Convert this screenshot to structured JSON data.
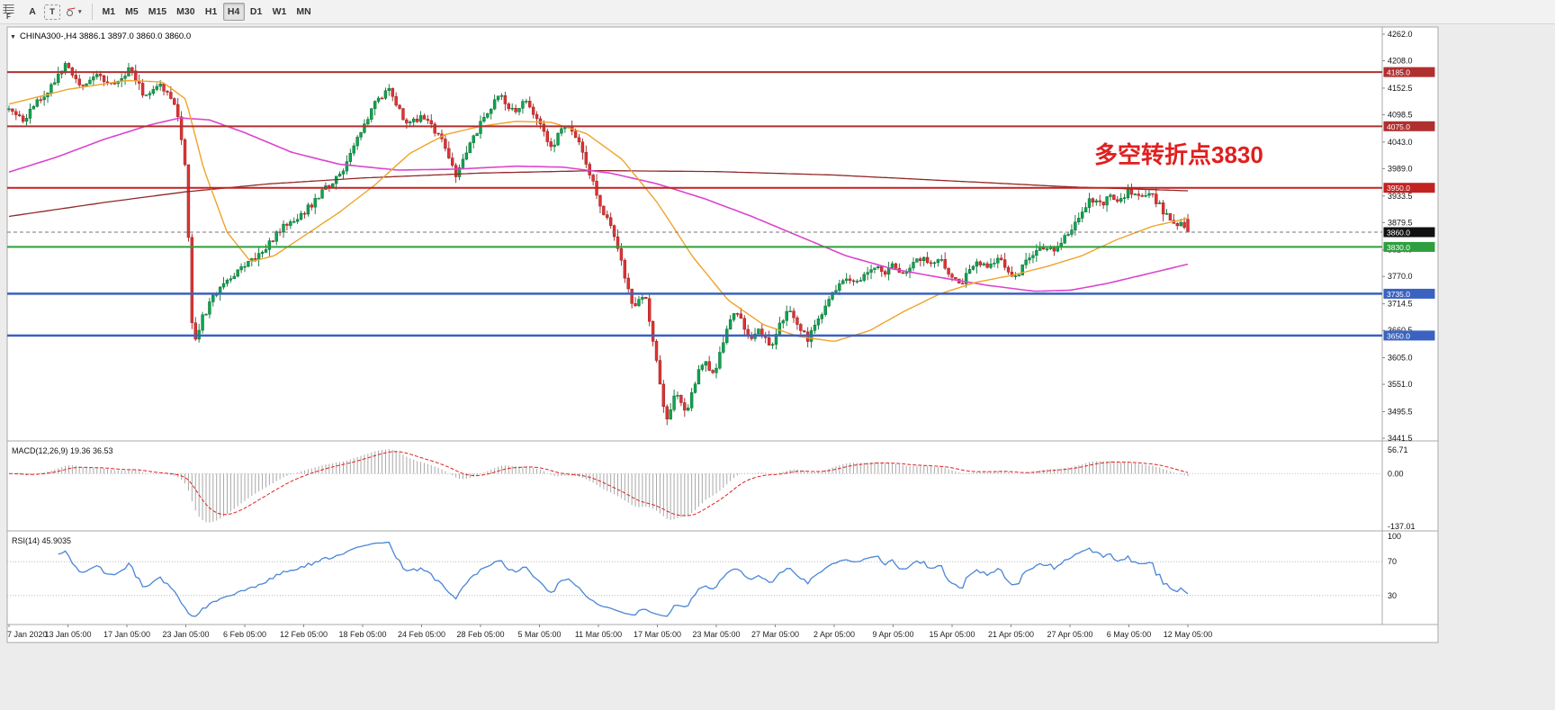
{
  "toolbar": {
    "window_tab_label": "F",
    "tools": {
      "cursor_label": "A",
      "text_label": "T",
      "shapes_caret": "▾"
    },
    "timeframes": [
      "M1",
      "M5",
      "M15",
      "M30",
      "H1",
      "H4",
      "D1",
      "W1",
      "MN"
    ],
    "active_timeframe": "H4"
  },
  "chart": {
    "expander_icon": "▼",
    "symbol_line": "CHINA300-,H4  3886.1 3897.0 3860.0 3860.0",
    "annotation": {
      "text": "多空转折点3830",
      "color": "#e01f1f"
    },
    "price_axis_labels": [
      "4262.0",
      "4208.0",
      "4152.5",
      "4098.5",
      "4043.0",
      "3989.0",
      "3933.5",
      "3879.5",
      "3824.0",
      "3770.0",
      "3714.5",
      "3660.5",
      "3605.0",
      "3551.0",
      "3495.5",
      "3441.5"
    ],
    "current_price": {
      "value": 3860.0,
      "label": "3860.0",
      "tag_color": "#111111"
    }
  },
  "indicators": {
    "macd": {
      "label": "MACD(12,26,9) 19.36 36.53",
      "axis_labels": [
        "56.71",
        "0.00",
        "-137.01"
      ]
    },
    "rsi": {
      "label": "RSI(14) 45.9035",
      "axis_labels": [
        "100",
        "70",
        "30"
      ],
      "levels": [
        70,
        30
      ]
    }
  },
  "time_axis": [
    "7 Jan 2020",
    "13 Jan 05:00",
    "17 Jan 05:00",
    "23 Jan 05:00",
    "6 Feb 05:00",
    "12 Feb 05:00",
    "18 Feb 05:00",
    "24 Feb 05:00",
    "28 Feb 05:00",
    "5 Mar 05:00",
    "11 Mar 05:00",
    "17 Mar 05:00",
    "23 Mar 05:00",
    "27 Mar 05:00",
    "2 Apr 05:00",
    "9 Apr 05:00",
    "15 Apr 05:00",
    "21 Apr 05:00",
    "27 Apr 05:00",
    "6 May 05:00",
    "12 May 05:00"
  ],
  "chart_data": {
    "type": "candlestick",
    "symbol": "CHINA300-",
    "timeframe": "H4",
    "current_bar": {
      "open": 3886.1,
      "high": 3897.0,
      "low": 3860.0,
      "close": 3860.0
    },
    "visible_price_range": {
      "top": 4262.0,
      "bottom": 3441.5
    },
    "candle_count": 336,
    "seed": 11,
    "price_path": [
      [
        0,
        4110
      ],
      [
        0.012,
        4088
      ],
      [
        0.03,
        4140
      ],
      [
        0.048,
        4200
      ],
      [
        0.06,
        4152
      ],
      [
        0.075,
        4180
      ],
      [
        0.088,
        4158
      ],
      [
        0.103,
        4195
      ],
      [
        0.115,
        4135
      ],
      [
        0.128,
        4165
      ],
      [
        0.143,
        4105
      ],
      [
        0.15,
        3980
      ],
      [
        0.156,
        3625
      ],
      [
        0.163,
        3680
      ],
      [
        0.178,
        3748
      ],
      [
        0.198,
        3788
      ],
      [
        0.213,
        3818
      ],
      [
        0.232,
        3868
      ],
      [
        0.252,
        3905
      ],
      [
        0.268,
        3948
      ],
      [
        0.283,
        3988
      ],
      [
        0.298,
        4058
      ],
      [
        0.312,
        4128
      ],
      [
        0.322,
        4152
      ],
      [
        0.338,
        4078
      ],
      [
        0.352,
        4095
      ],
      [
        0.368,
        4040
      ],
      [
        0.379,
        3978
      ],
      [
        0.391,
        4040
      ],
      [
        0.403,
        4092
      ],
      [
        0.416,
        4138
      ],
      [
        0.428,
        4105
      ],
      [
        0.439,
        4132
      ],
      [
        0.45,
        4080
      ],
      [
        0.46,
        4030
      ],
      [
        0.47,
        4082
      ],
      [
        0.48,
        4058
      ],
      [
        0.49,
        4000
      ],
      [
        0.5,
        3922
      ],
      [
        0.51,
        3875
      ],
      [
        0.52,
        3792
      ],
      [
        0.53,
        3705
      ],
      [
        0.54,
        3732
      ],
      [
        0.55,
        3585
      ],
      [
        0.558,
        3472
      ],
      [
        0.566,
        3542
      ],
      [
        0.574,
        3492
      ],
      [
        0.582,
        3558
      ],
      [
        0.59,
        3608
      ],
      [
        0.598,
        3562
      ],
      [
        0.606,
        3638
      ],
      [
        0.614,
        3698
      ],
      [
        0.622,
        3678
      ],
      [
        0.63,
        3642
      ],
      [
        0.638,
        3662
      ],
      [
        0.646,
        3625
      ],
      [
        0.654,
        3678
      ],
      [
        0.662,
        3698
      ],
      [
        0.67,
        3662
      ],
      [
        0.678,
        3642
      ],
      [
        0.686,
        3680
      ],
      [
        0.694,
        3718
      ],
      [
        0.702,
        3742
      ],
      [
        0.71,
        3768
      ],
      [
        0.718,
        3758
      ],
      [
        0.726,
        3775
      ],
      [
        0.734,
        3790
      ],
      [
        0.742,
        3778
      ],
      [
        0.75,
        3798
      ],
      [
        0.758,
        3775
      ],
      [
        0.766,
        3790
      ],
      [
        0.774,
        3808
      ],
      [
        0.782,
        3790
      ],
      [
        0.79,
        3803
      ],
      [
        0.798,
        3772
      ],
      [
        0.806,
        3752
      ],
      [
        0.814,
        3778
      ],
      [
        0.822,
        3800
      ],
      [
        0.83,
        3790
      ],
      [
        0.838,
        3808
      ],
      [
        0.846,
        3786
      ],
      [
        0.854,
        3770
      ],
      [
        0.862,
        3798
      ],
      [
        0.87,
        3818
      ],
      [
        0.878,
        3832
      ],
      [
        0.886,
        3820
      ],
      [
        0.894,
        3843
      ],
      [
        0.902,
        3868
      ],
      [
        0.91,
        3902
      ],
      [
        0.918,
        3928
      ],
      [
        0.926,
        3915
      ],
      [
        0.934,
        3938
      ],
      [
        0.942,
        3925
      ],
      [
        0.95,
        3944
      ],
      [
        0.958,
        3934
      ],
      [
        0.966,
        3940
      ],
      [
        0.974,
        3922
      ],
      [
        0.982,
        3892
      ],
      [
        0.991,
        3876
      ],
      [
        1,
        3868
      ]
    ],
    "ma_fast_path": [
      [
        0,
        4120
      ],
      [
        0.05,
        4150
      ],
      [
        0.1,
        4168
      ],
      [
        0.13,
        4165
      ],
      [
        0.15,
        4130
      ],
      [
        0.165,
        3990
      ],
      [
        0.185,
        3860
      ],
      [
        0.205,
        3800
      ],
      [
        0.225,
        3812
      ],
      [
        0.25,
        3852
      ],
      [
        0.28,
        3900
      ],
      [
        0.31,
        3955
      ],
      [
        0.34,
        4020
      ],
      [
        0.37,
        4058
      ],
      [
        0.4,
        4075
      ],
      [
        0.43,
        4085
      ],
      [
        0.46,
        4083
      ],
      [
        0.49,
        4060
      ],
      [
        0.52,
        4008
      ],
      [
        0.55,
        3920
      ],
      [
        0.58,
        3810
      ],
      [
        0.61,
        3722
      ],
      [
        0.64,
        3672
      ],
      [
        0.67,
        3648
      ],
      [
        0.7,
        3638
      ],
      [
        0.73,
        3660
      ],
      [
        0.76,
        3700
      ],
      [
        0.79,
        3735
      ],
      [
        0.82,
        3758
      ],
      [
        0.85,
        3772
      ],
      [
        0.88,
        3790
      ],
      [
        0.91,
        3812
      ],
      [
        0.94,
        3845
      ],
      [
        0.97,
        3872
      ],
      [
        1,
        3888
      ]
    ],
    "ma_mid_path": [
      [
        0,
        3982
      ],
      [
        0.04,
        4012
      ],
      [
        0.08,
        4048
      ],
      [
        0.12,
        4078
      ],
      [
        0.145,
        4092
      ],
      [
        0.17,
        4088
      ],
      [
        0.2,
        4062
      ],
      [
        0.24,
        4022
      ],
      [
        0.28,
        3998
      ],
      [
        0.33,
        3986
      ],
      [
        0.38,
        3988
      ],
      [
        0.43,
        3994
      ],
      [
        0.47,
        3992
      ],
      [
        0.51,
        3980
      ],
      [
        0.55,
        3958
      ],
      [
        0.59,
        3928
      ],
      [
        0.63,
        3892
      ],
      [
        0.67,
        3852
      ],
      [
        0.71,
        3812
      ],
      [
        0.75,
        3785
      ],
      [
        0.79,
        3768
      ],
      [
        0.83,
        3752
      ],
      [
        0.87,
        3740
      ],
      [
        0.9,
        3742
      ],
      [
        0.93,
        3755
      ],
      [
        0.96,
        3772
      ],
      [
        1,
        3795
      ]
    ],
    "ma_slow_path": [
      [
        0,
        3892
      ],
      [
        0.08,
        3920
      ],
      [
        0.15,
        3942
      ],
      [
        0.22,
        3958
      ],
      [
        0.3,
        3970
      ],
      [
        0.4,
        3980
      ],
      [
        0.5,
        3985
      ],
      [
        0.6,
        3983
      ],
      [
        0.7,
        3976
      ],
      [
        0.8,
        3964
      ],
      [
        0.9,
        3952
      ],
      [
        1,
        3944
      ]
    ],
    "hlines": [
      {
        "price": 4185.0,
        "label": "4185.0",
        "color": "#b03030",
        "width": 2
      },
      {
        "price": 4075.0,
        "label": "4075.0",
        "color": "#b03030",
        "width": 2
      },
      {
        "price": 3950.0,
        "label": "3950.0",
        "color": "#c32222",
        "width": 2
      },
      {
        "price": 3830.0,
        "label": "3830.0",
        "color": "#2e9e3f",
        "width": 2
      },
      {
        "price": 3735.0,
        "label": "3735.0",
        "color": "#3a62c0",
        "width": 2.5
      },
      {
        "price": 3650.0,
        "label": "3650.0",
        "color": "#3a62c0",
        "width": 2.5
      }
    ],
    "colors": {
      "up": "#0fa44e",
      "up_edge": "#0b6f36",
      "down": "#de3333",
      "down_edge": "#9e1f1f",
      "ma_fast": "#efa32a",
      "ma_mid": "#dd44cc",
      "ma_slow": "#902828",
      "macd_bar": "#a8a8a8",
      "macd_signal": "#dd2222",
      "rsi": "#4a86d6"
    }
  }
}
